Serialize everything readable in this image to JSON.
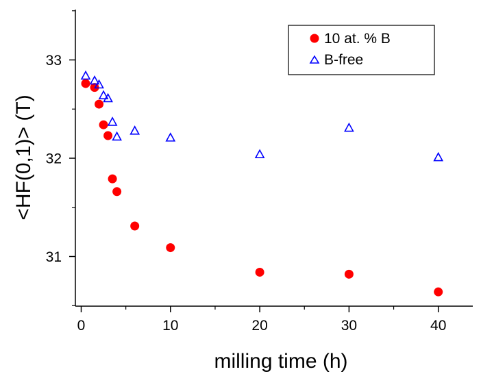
{
  "chart_data": {
    "type": "scatter",
    "title": "",
    "xlabel": "milling time (h)",
    "ylabel": "<HF(0,1)> (T)",
    "xlim": [
      -1,
      45
    ],
    "ylim": [
      30.5,
      33.5
    ],
    "xticks": [
      "0",
      "10",
      "20",
      "30",
      "40"
    ],
    "yticks": [
      "31",
      "32",
      "33"
    ],
    "grid": false,
    "legend_position": "top-right",
    "series": [
      {
        "name": "10 at. % B",
        "marker": "filled-circle",
        "color": "#ff0000",
        "x": [
          0.5,
          1.5,
          2,
          2.5,
          3,
          3.5,
          4,
          6,
          10,
          20,
          30,
          40
        ],
        "y": [
          32.76,
          32.72,
          32.55,
          32.34,
          32.23,
          31.79,
          31.66,
          31.31,
          31.09,
          30.84,
          30.82,
          30.64
        ]
      },
      {
        "name": "B-free",
        "marker": "open-triangle",
        "color": "#0000ff",
        "x": [
          0.5,
          1.5,
          2,
          2.5,
          3,
          3.5,
          4,
          6,
          10,
          20,
          30,
          40
        ],
        "y": [
          32.84,
          32.79,
          32.75,
          32.64,
          32.61,
          32.37,
          32.22,
          32.28,
          32.21,
          32.04,
          32.31,
          32.01
        ]
      }
    ]
  }
}
